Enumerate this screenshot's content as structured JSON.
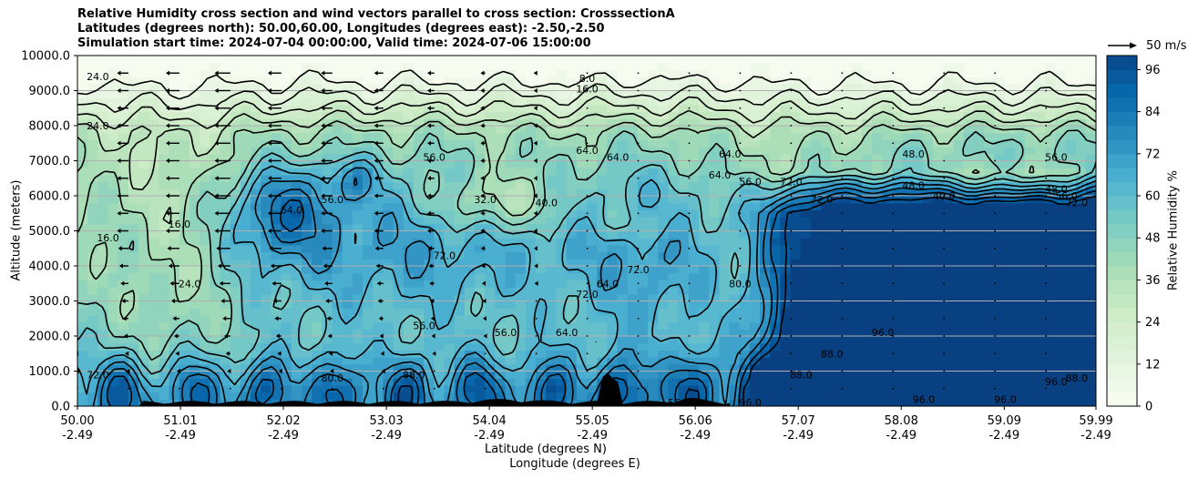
{
  "chart_data": {
    "type": "heatmap",
    "title": [
      "Relative Humidity cross section and wind vectors parallel to cross section: CrosssectionA",
      "Latitudes (degrees north): 50.00,60.00, Longitudes (degrees east): -2.50,-2.50",
      "Simulation start time: 2024-07-04 00:00:00, Valid time: 2024-07-06 15:00:00"
    ],
    "ylabel": "Altitude (meters)",
    "xlabel": [
      "Latitude (degrees N)",
      "Longitude (degrees E)"
    ],
    "xlim": [
      50.0,
      59.99
    ],
    "ylim": [
      0,
      10000
    ],
    "x_ticks": [
      {
        "lat": "50.00",
        "lon": "-2.49",
        "value": 50.0
      },
      {
        "lat": "51.01",
        "lon": "-2.49",
        "value": 51.01
      },
      {
        "lat": "52.02",
        "lon": "-2.49",
        "value": 52.02
      },
      {
        "lat": "53.03",
        "lon": "-2.49",
        "value": 53.03
      },
      {
        "lat": "54.04",
        "lon": "-2.49",
        "value": 54.04
      },
      {
        "lat": "55.05",
        "lon": "-2.49",
        "value": 55.05
      },
      {
        "lat": "56.06",
        "lon": "-2.49",
        "value": 56.06
      },
      {
        "lat": "57.07",
        "lon": "-2.49",
        "value": 57.07
      },
      {
        "lat": "58.08",
        "lon": "-2.49",
        "value": 58.08
      },
      {
        "lat": "59.09",
        "lon": "-2.49",
        "value": 59.09
      },
      {
        "lat": "59.99",
        "lon": "-2.49",
        "value": 59.99
      }
    ],
    "y_ticks": [
      {
        "label": "0.0",
        "value": 0
      },
      {
        "label": "1000.0",
        "value": 1000
      },
      {
        "label": "2000.0",
        "value": 2000
      },
      {
        "label": "3000.0",
        "value": 3000
      },
      {
        "label": "4000.0",
        "value": 4000
      },
      {
        "label": "5000.0",
        "value": 5000
      },
      {
        "label": "6000.0",
        "value": 6000
      },
      {
        "label": "7000.0",
        "value": 7000
      },
      {
        "label": "8000.0",
        "value": 8000
      },
      {
        "label": "9000.0",
        "value": 9000
      },
      {
        "label": "10000.0",
        "value": 10000
      }
    ],
    "grid": "horizontal",
    "colorbar": {
      "label": "Relative Humidity %",
      "min": 0,
      "max": 100,
      "levels_step": 4,
      "ticks": [
        {
          "label": "0",
          "value": 0
        },
        {
          "label": "12",
          "value": 12
        },
        {
          "label": "24",
          "value": 24
        },
        {
          "label": "36",
          "value": 36
        },
        {
          "label": "48",
          "value": 48
        },
        {
          "label": "60",
          "value": 60
        },
        {
          "label": "72",
          "value": 72
        },
        {
          "label": "84",
          "value": 84
        },
        {
          "label": "96",
          "value": 96
        }
      ],
      "colors": [
        "#f7fcf0",
        "#e0f3db",
        "#ccebc5",
        "#a8ddb5",
        "#7bccc4",
        "#4eb3d3",
        "#2b8cbe",
        "#0868ac",
        "#084081"
      ]
    },
    "quiver_key": {
      "label": "50 m/s",
      "value": 50
    },
    "contour_labels": [
      {
        "text": "8.0",
        "lat": 55.0,
        "alt": 9350
      },
      {
        "text": "16.0",
        "lat": 55.0,
        "alt": 9050
      },
      {
        "text": "24.0",
        "lat": 50.2,
        "alt": 9400
      },
      {
        "text": "24.0",
        "lat": 50.2,
        "alt": 8000
      },
      {
        "text": "16.0",
        "lat": 50.3,
        "alt": 4800
      },
      {
        "text": "16.0",
        "lat": 51.0,
        "alt": 5200
      },
      {
        "text": "24.0",
        "lat": 51.1,
        "alt": 3500
      },
      {
        "text": "56.0",
        "lat": 53.5,
        "alt": 7100
      },
      {
        "text": "56.0",
        "lat": 52.5,
        "alt": 5900
      },
      {
        "text": "64.0",
        "lat": 52.1,
        "alt": 5600
      },
      {
        "text": "32.0",
        "lat": 54.0,
        "alt": 5900
      },
      {
        "text": "40.0",
        "lat": 54.6,
        "alt": 5800
      },
      {
        "text": "64.0",
        "lat": 55.0,
        "alt": 7300
      },
      {
        "text": "64.0",
        "lat": 55.3,
        "alt": 7100
      },
      {
        "text": "72.0",
        "lat": 53.6,
        "alt": 4300
      },
      {
        "text": "72.0",
        "lat": 55.5,
        "alt": 3900
      },
      {
        "text": "64.0",
        "lat": 55.2,
        "alt": 3500
      },
      {
        "text": "72.0",
        "lat": 55.0,
        "alt": 3200
      },
      {
        "text": "56.0",
        "lat": 53.4,
        "alt": 2300
      },
      {
        "text": "56.0",
        "lat": 54.2,
        "alt": 2100
      },
      {
        "text": "64.0",
        "lat": 54.8,
        "alt": 2100
      },
      {
        "text": "80.0",
        "lat": 56.5,
        "alt": 3500
      },
      {
        "text": "64.0",
        "lat": 56.3,
        "alt": 6600
      },
      {
        "text": "56.0",
        "lat": 56.6,
        "alt": 6400
      },
      {
        "text": "64.0",
        "lat": 56.4,
        "alt": 7200
      },
      {
        "text": "72.0",
        "lat": 57.0,
        "alt": 6400
      },
      {
        "text": "72.0",
        "lat": 57.3,
        "alt": 5900
      },
      {
        "text": "48.0",
        "lat": 58.2,
        "alt": 7200
      },
      {
        "text": "48.0",
        "lat": 58.2,
        "alt": 6300
      },
      {
        "text": "40.0",
        "lat": 58.5,
        "alt": 6000
      },
      {
        "text": "56.0",
        "lat": 59.6,
        "alt": 7100
      },
      {
        "text": "48.0",
        "lat": 59.6,
        "alt": 6200
      },
      {
        "text": "56.0",
        "lat": 59.7,
        "alt": 6000
      },
      {
        "text": "72.0",
        "lat": 59.8,
        "alt": 5800
      },
      {
        "text": "96.0",
        "lat": 57.9,
        "alt": 2100
      },
      {
        "text": "88.0",
        "lat": 57.4,
        "alt": 1500
      },
      {
        "text": "88.0",
        "lat": 57.1,
        "alt": 900
      },
      {
        "text": "96.0",
        "lat": 58.3,
        "alt": 200
      },
      {
        "text": "96.0",
        "lat": 59.1,
        "alt": 200
      },
      {
        "text": "96.0",
        "lat": 59.6,
        "alt": 700
      },
      {
        "text": "88.0",
        "lat": 59.8,
        "alt": 800
      },
      {
        "text": "80.0",
        "lat": 52.5,
        "alt": 800
      },
      {
        "text": "88.0",
        "lat": 53.3,
        "alt": 900
      },
      {
        "text": "72.0",
        "lat": 50.2,
        "alt": 900
      },
      {
        "text": "56.0",
        "lat": 55.9,
        "alt": 100
      },
      {
        "text": "96.0",
        "lat": 56.6,
        "alt": 100
      }
    ]
  }
}
